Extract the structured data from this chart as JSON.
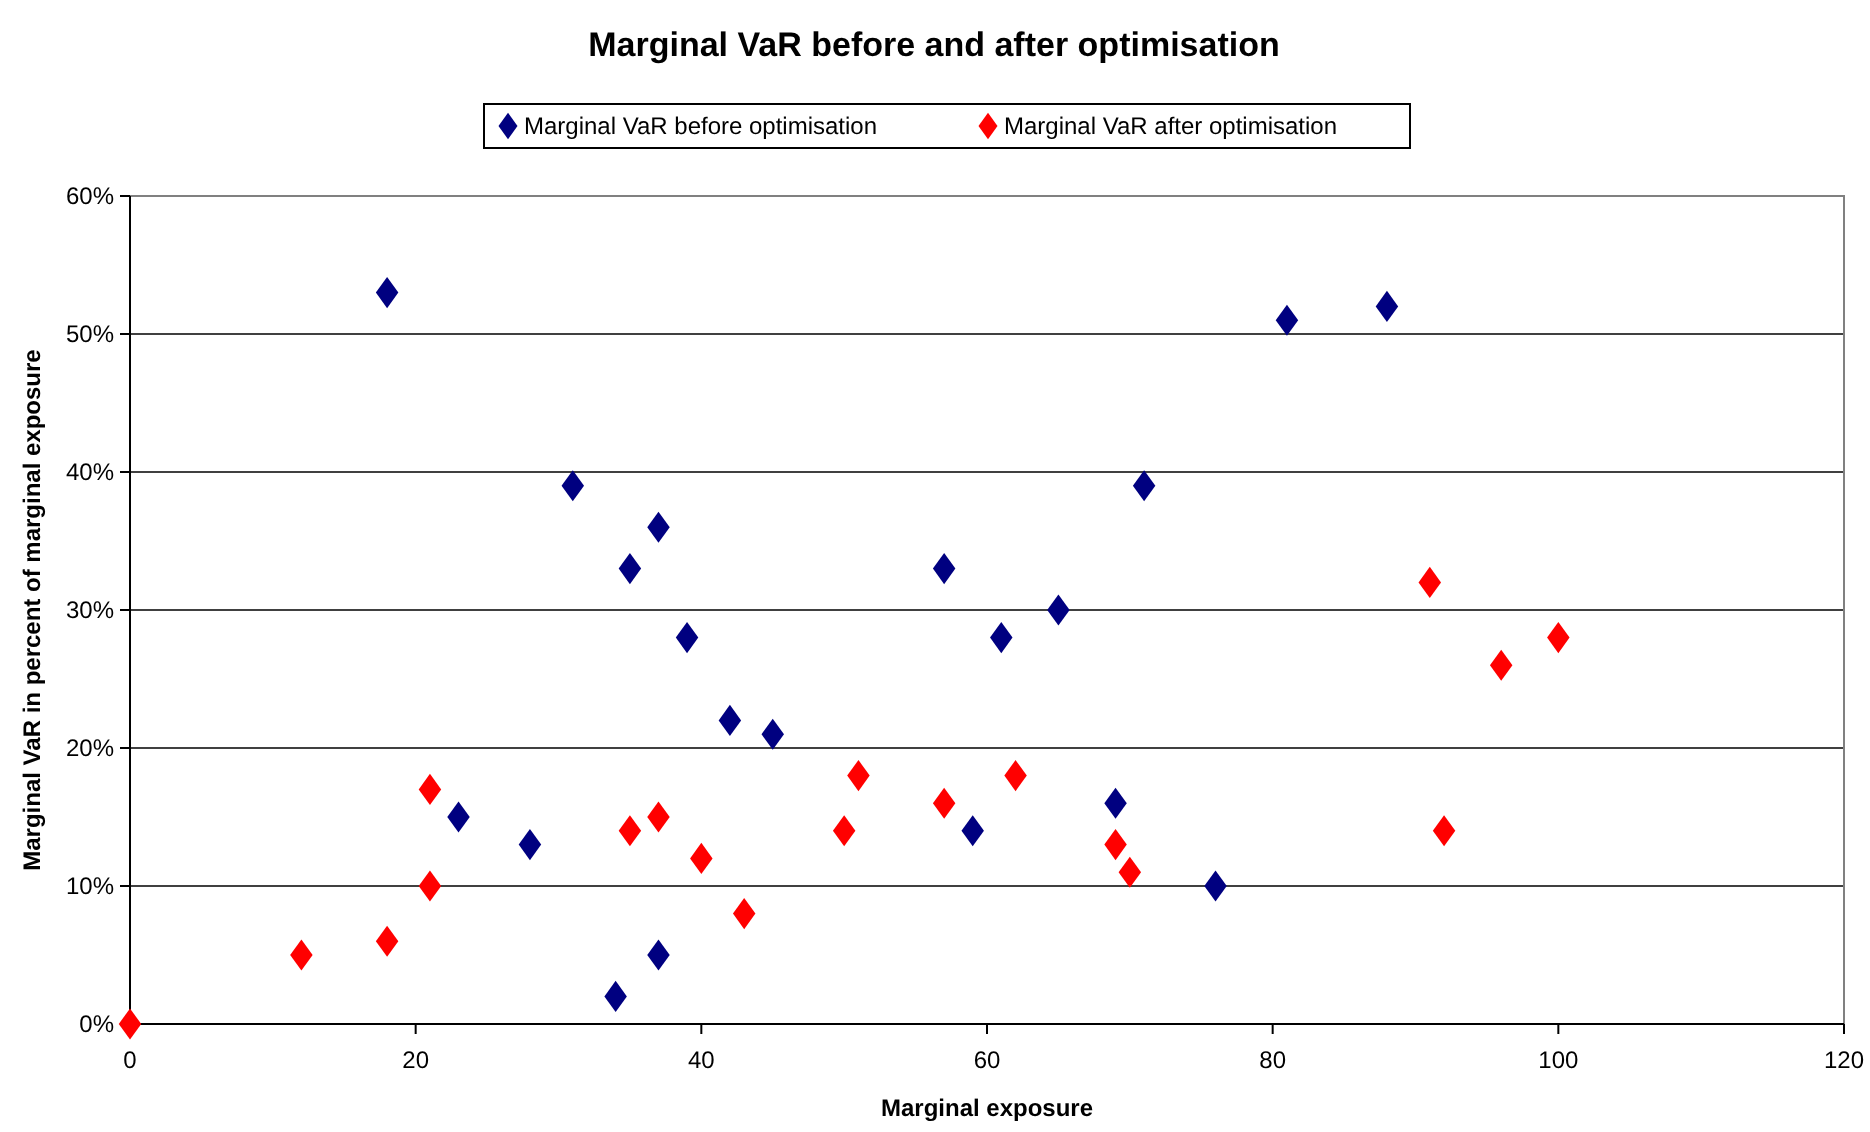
{
  "chart_data": {
    "type": "scatter",
    "title": "Marginal VaR before and after optimisation",
    "xlabel": "Marginal exposure",
    "ylabel": "Marginal VaR in percent of marginal exposure",
    "marker": "diamond",
    "grid": "y",
    "legend": "top",
    "xlim": [
      0,
      120
    ],
    "xticks": [
      0,
      20,
      40,
      60,
      80,
      100,
      120
    ],
    "ylim": [
      0,
      60
    ],
    "yticks": [
      {
        "value": 0,
        "label": "0%"
      },
      {
        "value": 10,
        "label": "10%"
      },
      {
        "value": 20,
        "label": "20%"
      },
      {
        "value": 30,
        "label": "30%"
      },
      {
        "value": 40,
        "label": "40%"
      },
      {
        "value": 50,
        "label": "50%"
      },
      {
        "value": 60,
        "label": "60%"
      }
    ],
    "series": [
      {
        "name": "Marginal VaR before optimisation",
        "color": "#000080",
        "x": [
          18,
          31,
          35,
          37,
          39,
          42,
          45,
          23,
          28,
          34,
          37,
          57,
          61,
          65,
          71,
          59,
          69,
          76,
          81,
          88
        ],
        "values": [
          53,
          39,
          33,
          36,
          28,
          22,
          21,
          15,
          13,
          2,
          5,
          33,
          28,
          30,
          39,
          14,
          16,
          10,
          51,
          52
        ]
      },
      {
        "name": "Marginal VaR after optimisation",
        "color": "#ff0000",
        "x": [
          0,
          12,
          18,
          21,
          21,
          35,
          37,
          40,
          43,
          50,
          51,
          57,
          62,
          69,
          70,
          91,
          92,
          96,
          100
        ],
        "values": [
          0,
          5,
          6,
          17,
          10,
          14,
          15,
          12,
          8,
          14,
          18,
          16,
          18,
          13,
          11,
          32,
          14,
          26,
          28
        ]
      }
    ]
  }
}
